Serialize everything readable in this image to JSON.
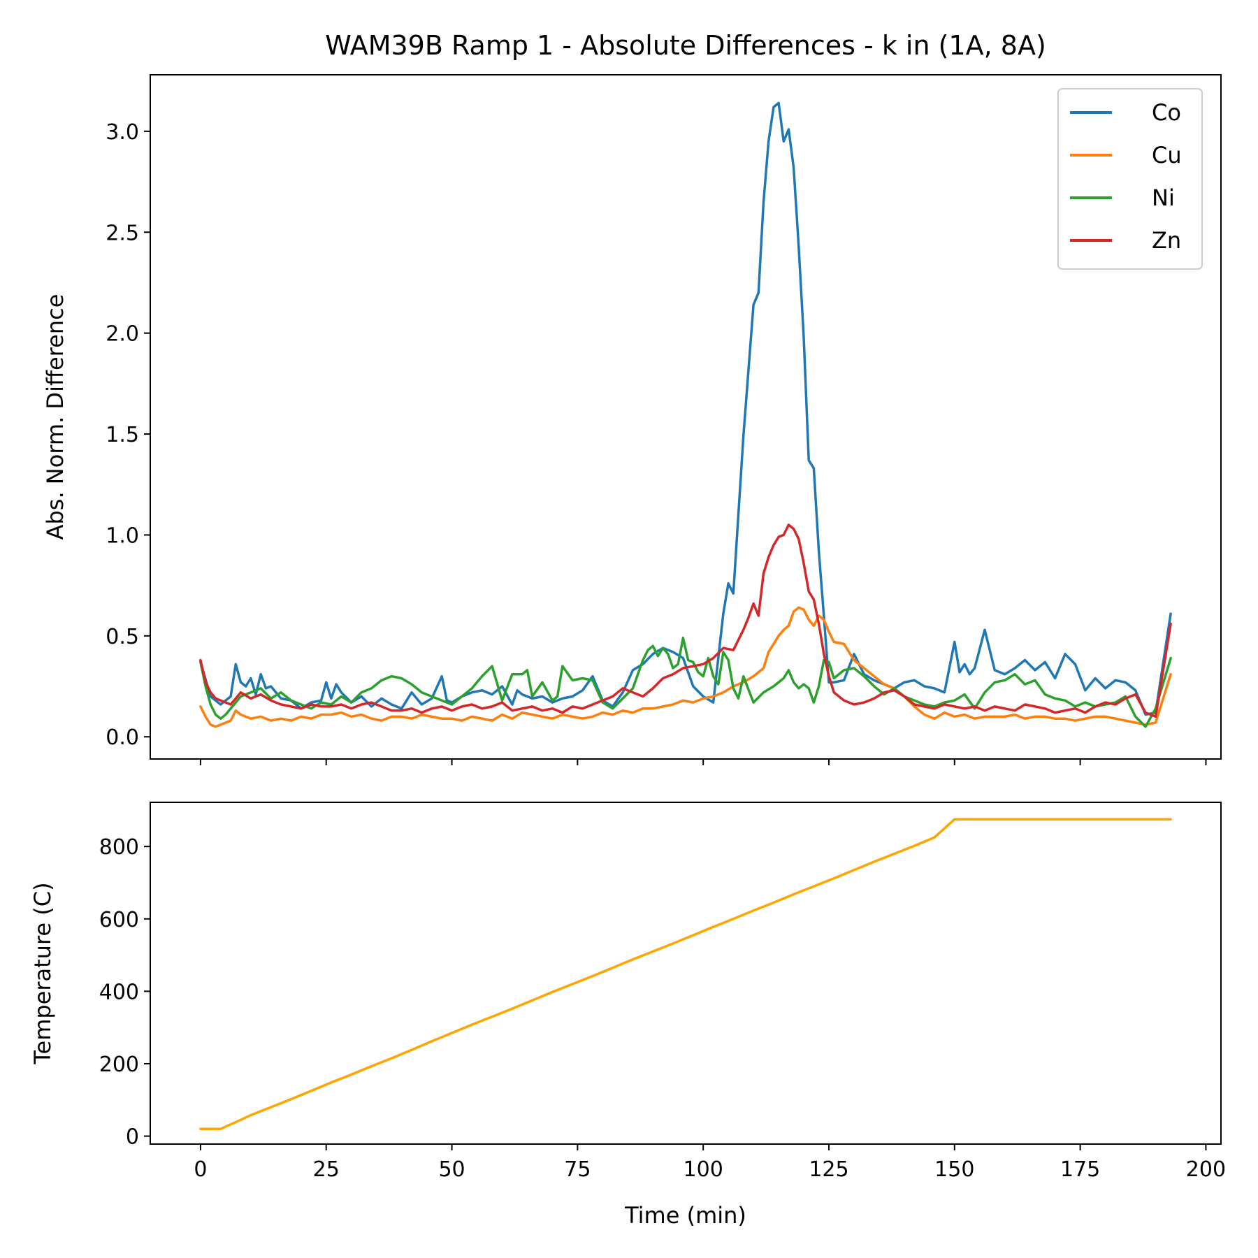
{
  "chart_data": [
    {
      "type": "line",
      "title": "WAM39B Ramp 1 - Absolute Differences - k in (1A, 8A)",
      "xlabel": "",
      "ylabel": "Abs. Norm. Difference",
      "xlim": [
        -10,
        203
      ],
      "ylim": [
        -0.11,
        3.28
      ],
      "xticks": [
        0,
        25,
        50,
        75,
        100,
        125,
        150,
        175,
        200
      ],
      "yticks": [
        0.0,
        0.5,
        1.0,
        1.5,
        2.0,
        2.5,
        3.0
      ],
      "ytick_labels": [
        "0.0",
        "0.5",
        "1.0",
        "1.5",
        "2.0",
        "2.5",
        "3.0"
      ],
      "xtick_labels_visible": false,
      "legend": "top-right",
      "grid": false,
      "series": [
        {
          "name": "Co",
          "color": "#1f77b4",
          "x": [
            0,
            2,
            4,
            6,
            7,
            8,
            9,
            10,
            11,
            12,
            13,
            14,
            16,
            18,
            20,
            22,
            24,
            25,
            26,
            27,
            28,
            30,
            32,
            34,
            36,
            38,
            40,
            42,
            44,
            46,
            48,
            49,
            50,
            52,
            54,
            56,
            58,
            60,
            62,
            63,
            64,
            66,
            68,
            70,
            72,
            74,
            76,
            78,
            80,
            82,
            84,
            86,
            88,
            90,
            92,
            94,
            96,
            98,
            100,
            102,
            104,
            105,
            106,
            108,
            110,
            111,
            112,
            113,
            114,
            115,
            116,
            117,
            118,
            119,
            120,
            121,
            122,
            123,
            124,
            125,
            126,
            128,
            130,
            132,
            134,
            136,
            138,
            140,
            142,
            144,
            146,
            148,
            150,
            151,
            152,
            153,
            154,
            156,
            158,
            160,
            162,
            164,
            166,
            168,
            170,
            172,
            174,
            176,
            178,
            180,
            182,
            184,
            186,
            188,
            190,
            193
          ],
          "y": [
            0.37,
            0.2,
            0.16,
            0.2,
            0.36,
            0.27,
            0.25,
            0.29,
            0.21,
            0.31,
            0.24,
            0.25,
            0.19,
            0.18,
            0.14,
            0.17,
            0.18,
            0.27,
            0.19,
            0.26,
            0.22,
            0.17,
            0.2,
            0.15,
            0.19,
            0.16,
            0.14,
            0.22,
            0.16,
            0.19,
            0.3,
            0.18,
            0.17,
            0.2,
            0.22,
            0.23,
            0.21,
            0.25,
            0.16,
            0.23,
            0.21,
            0.19,
            0.2,
            0.17,
            0.19,
            0.2,
            0.23,
            0.3,
            0.18,
            0.15,
            0.22,
            0.33,
            0.36,
            0.41,
            0.44,
            0.42,
            0.39,
            0.25,
            0.2,
            0.17,
            0.61,
            0.76,
            0.71,
            1.49,
            2.14,
            2.2,
            2.65,
            2.95,
            3.12,
            3.14,
            2.95,
            3.01,
            2.82,
            2.43,
            1.98,
            1.37,
            1.33,
            0.92,
            0.6,
            0.27,
            0.27,
            0.28,
            0.41,
            0.31,
            0.28,
            0.26,
            0.24,
            0.27,
            0.28,
            0.25,
            0.24,
            0.22,
            0.47,
            0.32,
            0.36,
            0.31,
            0.34,
            0.53,
            0.33,
            0.31,
            0.34,
            0.38,
            0.33,
            0.37,
            0.29,
            0.41,
            0.36,
            0.23,
            0.29,
            0.24,
            0.28,
            0.27,
            0.23,
            0.11,
            0.12,
            0.61
          ]
        },
        {
          "name": "Cu",
          "color": "#ff7f0e",
          "x": [
            0,
            1,
            2,
            3,
            4,
            6,
            7,
            8,
            10,
            12,
            14,
            16,
            18,
            20,
            22,
            24,
            26,
            28,
            30,
            32,
            34,
            36,
            38,
            40,
            42,
            44,
            46,
            48,
            50,
            52,
            54,
            56,
            58,
            60,
            62,
            64,
            66,
            68,
            70,
            72,
            74,
            76,
            78,
            80,
            82,
            84,
            86,
            88,
            90,
            92,
            94,
            96,
            98,
            100,
            102,
            104,
            106,
            108,
            110,
            112,
            113,
            114,
            115,
            116,
            117,
            118,
            119,
            120,
            121,
            122,
            123,
            124,
            125,
            126,
            128,
            130,
            132,
            134,
            136,
            138,
            140,
            142,
            144,
            146,
            148,
            150,
            152,
            154,
            156,
            158,
            160,
            162,
            164,
            166,
            168,
            170,
            172,
            174,
            176,
            178,
            180,
            182,
            184,
            186,
            188,
            190,
            193
          ],
          "y": [
            0.15,
            0.1,
            0.06,
            0.05,
            0.06,
            0.08,
            0.13,
            0.11,
            0.09,
            0.1,
            0.08,
            0.09,
            0.08,
            0.1,
            0.09,
            0.11,
            0.11,
            0.12,
            0.1,
            0.11,
            0.09,
            0.08,
            0.1,
            0.1,
            0.09,
            0.11,
            0.1,
            0.09,
            0.09,
            0.08,
            0.1,
            0.09,
            0.08,
            0.11,
            0.09,
            0.12,
            0.11,
            0.1,
            0.09,
            0.11,
            0.1,
            0.09,
            0.1,
            0.12,
            0.11,
            0.13,
            0.12,
            0.14,
            0.14,
            0.15,
            0.16,
            0.18,
            0.17,
            0.19,
            0.2,
            0.22,
            0.25,
            0.27,
            0.3,
            0.34,
            0.42,
            0.46,
            0.5,
            0.53,
            0.55,
            0.62,
            0.64,
            0.63,
            0.58,
            0.55,
            0.6,
            0.58,
            0.52,
            0.47,
            0.46,
            0.38,
            0.34,
            0.3,
            0.26,
            0.24,
            0.2,
            0.15,
            0.11,
            0.09,
            0.12,
            0.1,
            0.11,
            0.09,
            0.1,
            0.1,
            0.1,
            0.11,
            0.09,
            0.1,
            0.1,
            0.09,
            0.09,
            0.08,
            0.09,
            0.1,
            0.1,
            0.09,
            0.08,
            0.07,
            0.06,
            0.07,
            0.31
          ]
        },
        {
          "name": "Ni",
          "color": "#2ca02c",
          "x": [
            0,
            1,
            2,
            3,
            4,
            5,
            6,
            8,
            10,
            12,
            14,
            16,
            18,
            20,
            22,
            24,
            26,
            28,
            30,
            32,
            34,
            36,
            38,
            40,
            42,
            44,
            46,
            48,
            50,
            52,
            54,
            56,
            58,
            60,
            62,
            64,
            65,
            66,
            68,
            70,
            71,
            72,
            74,
            76,
            78,
            80,
            82,
            84,
            86,
            88,
            89,
            90,
            91,
            92,
            93,
            94,
            95,
            96,
            97,
            98,
            99,
            100,
            101,
            102,
            103,
            104,
            105,
            106,
            107,
            108,
            110,
            112,
            114,
            116,
            117,
            118,
            119,
            120,
            121,
            122,
            123,
            124,
            125,
            126,
            128,
            130,
            132,
            134,
            136,
            138,
            140,
            142,
            144,
            146,
            148,
            150,
            152,
            154,
            156,
            158,
            160,
            162,
            164,
            166,
            168,
            170,
            172,
            174,
            176,
            178,
            180,
            182,
            184,
            186,
            188,
            190,
            193
          ],
          "y": [
            0.37,
            0.25,
            0.16,
            0.11,
            0.09,
            0.11,
            0.14,
            0.2,
            0.22,
            0.24,
            0.19,
            0.22,
            0.18,
            0.16,
            0.14,
            0.17,
            0.16,
            0.2,
            0.17,
            0.22,
            0.24,
            0.28,
            0.3,
            0.29,
            0.26,
            0.22,
            0.2,
            0.18,
            0.16,
            0.2,
            0.24,
            0.3,
            0.35,
            0.18,
            0.31,
            0.31,
            0.33,
            0.2,
            0.27,
            0.18,
            0.2,
            0.35,
            0.28,
            0.29,
            0.28,
            0.17,
            0.14,
            0.19,
            0.24,
            0.38,
            0.43,
            0.45,
            0.4,
            0.44,
            0.41,
            0.34,
            0.36,
            0.49,
            0.38,
            0.37,
            0.32,
            0.3,
            0.39,
            0.3,
            0.26,
            0.42,
            0.38,
            0.24,
            0.19,
            0.3,
            0.17,
            0.22,
            0.25,
            0.29,
            0.33,
            0.27,
            0.24,
            0.26,
            0.24,
            0.17,
            0.25,
            0.38,
            0.37,
            0.29,
            0.33,
            0.34,
            0.3,
            0.25,
            0.21,
            0.24,
            0.2,
            0.18,
            0.16,
            0.15,
            0.17,
            0.18,
            0.21,
            0.14,
            0.22,
            0.27,
            0.28,
            0.31,
            0.26,
            0.28,
            0.21,
            0.19,
            0.18,
            0.15,
            0.17,
            0.15,
            0.16,
            0.17,
            0.2,
            0.1,
            0.05,
            0.14,
            0.39
          ]
        },
        {
          "name": "Zn",
          "color": "#d62728",
          "x": [
            0,
            1,
            2,
            3,
            4,
            6,
            8,
            10,
            12,
            14,
            16,
            18,
            20,
            22,
            24,
            26,
            28,
            30,
            32,
            34,
            36,
            38,
            40,
            42,
            44,
            46,
            48,
            50,
            52,
            54,
            56,
            58,
            60,
            62,
            64,
            66,
            68,
            70,
            72,
            74,
            76,
            78,
            80,
            82,
            84,
            86,
            88,
            90,
            92,
            94,
            96,
            98,
            100,
            102,
            104,
            106,
            108,
            109,
            110,
            111,
            112,
            113,
            114,
            115,
            116,
            117,
            118,
            119,
            120,
            121,
            122,
            123,
            124,
            125,
            126,
            128,
            130,
            132,
            134,
            136,
            138,
            140,
            142,
            144,
            146,
            148,
            150,
            152,
            154,
            156,
            158,
            160,
            162,
            164,
            166,
            168,
            170,
            172,
            174,
            176,
            178,
            180,
            182,
            184,
            186,
            188,
            190,
            193
          ],
          "y": [
            0.38,
            0.27,
            0.22,
            0.19,
            0.18,
            0.16,
            0.22,
            0.19,
            0.21,
            0.18,
            0.16,
            0.15,
            0.14,
            0.16,
            0.15,
            0.15,
            0.16,
            0.14,
            0.16,
            0.17,
            0.15,
            0.13,
            0.13,
            0.14,
            0.12,
            0.14,
            0.15,
            0.13,
            0.15,
            0.16,
            0.14,
            0.15,
            0.17,
            0.13,
            0.14,
            0.15,
            0.13,
            0.14,
            0.12,
            0.15,
            0.14,
            0.16,
            0.18,
            0.2,
            0.24,
            0.22,
            0.2,
            0.24,
            0.29,
            0.31,
            0.34,
            0.35,
            0.36,
            0.39,
            0.44,
            0.43,
            0.53,
            0.59,
            0.66,
            0.6,
            0.81,
            0.89,
            0.95,
            0.99,
            1.0,
            1.05,
            1.03,
            0.98,
            0.86,
            0.72,
            0.68,
            0.56,
            0.41,
            0.3,
            0.22,
            0.18,
            0.16,
            0.17,
            0.19,
            0.22,
            0.23,
            0.2,
            0.16,
            0.15,
            0.14,
            0.16,
            0.15,
            0.14,
            0.15,
            0.13,
            0.15,
            0.14,
            0.13,
            0.16,
            0.15,
            0.14,
            0.12,
            0.13,
            0.14,
            0.12,
            0.15,
            0.17,
            0.16,
            0.19,
            0.21,
            0.12,
            0.1,
            0.56
          ]
        }
      ]
    },
    {
      "type": "line",
      "title": "",
      "xlabel": "Time (min)",
      "ylabel": "Temperature (C)",
      "xlim": [
        -10,
        203
      ],
      "ylim": [
        -22,
        922
      ],
      "xticks": [
        0,
        25,
        50,
        75,
        100,
        125,
        150,
        175,
        200
      ],
      "xtick_labels": [
        "0",
        "25",
        "50",
        "75",
        "100",
        "125",
        "150",
        "175",
        "200"
      ],
      "yticks": [
        0,
        200,
        400,
        600,
        800
      ],
      "ytick_labels": [
        "0",
        "200",
        "400",
        "600",
        "800"
      ],
      "grid": false,
      "series": [
        {
          "color": "#ffa500",
          "x": [
            0,
            4,
            8,
            10,
            14,
            18,
            22,
            26,
            30,
            34,
            38,
            42,
            46,
            50,
            54,
            58,
            62,
            66,
            70,
            74,
            78,
            82,
            86,
            90,
            94,
            98,
            102,
            106,
            110,
            114,
            118,
            122,
            126,
            130,
            134,
            138,
            142,
            146,
            150,
            193
          ],
          "y": [
            20,
            20,
            45,
            58,
            80,
            102,
            125,
            148,
            170,
            193,
            215,
            238,
            262,
            285,
            308,
            330,
            352,
            375,
            398,
            420,
            442,
            465,
            488,
            510,
            532,
            555,
            578,
            600,
            623,
            645,
            668,
            690,
            712,
            735,
            758,
            780,
            802,
            825,
            875,
            875
          ]
        }
      ]
    }
  ]
}
